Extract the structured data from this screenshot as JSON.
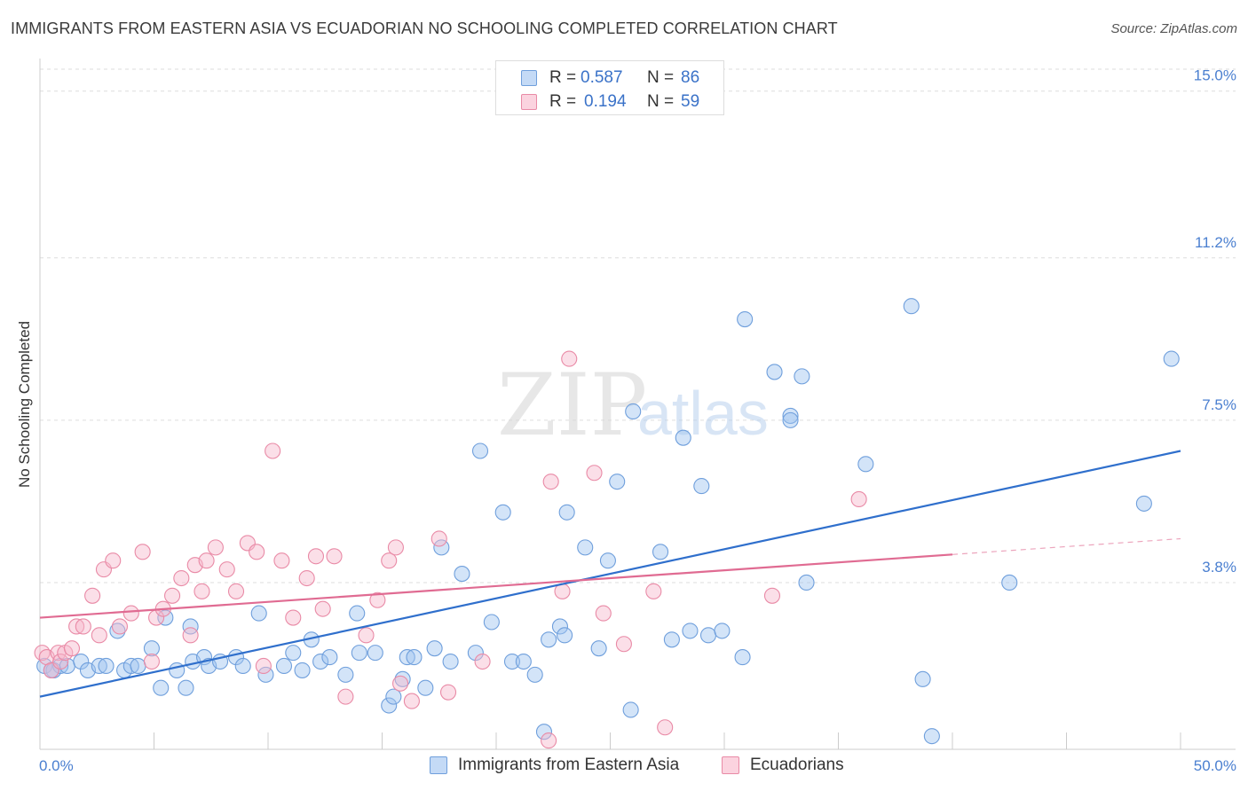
{
  "title": "IMMIGRANTS FROM EASTERN ASIA VS ECUADORIAN NO SCHOOLING COMPLETED CORRELATION CHART",
  "source": "Source: ZipAtlas.com",
  "watermark": {
    "zip": "ZIP",
    "atlas": "atlas"
  },
  "legend_top": {
    "rows": [
      {
        "r_label": "R =",
        "r_value": "0.587",
        "n_label": "N =",
        "n_value": "86",
        "color": "#9ec3f0"
      },
      {
        "r_label": "R =",
        "r_value": "0.194",
        "n_label": "N =",
        "n_value": "59",
        "color": "#f6b8cb"
      }
    ]
  },
  "legend_bottom": [
    {
      "label": "Immigrants from Eastern Asia",
      "color": "#9ec3f0"
    },
    {
      "label": "Ecuadorians",
      "color": "#f6b8cb"
    }
  ],
  "chart_data": {
    "type": "scatter",
    "title": "IMMIGRANTS FROM EASTERN ASIA VS ECUADORIAN NO SCHOOLING COMPLETED CORRELATION CHART",
    "xlabel": "",
    "ylabel": "No Schooling Completed",
    "xlim": [
      0,
      50
    ],
    "ylim": [
      0,
      15.5
    ],
    "x_tick_labels": [
      "0.0%",
      "50.0%"
    ],
    "y_ticks": [
      {
        "value": 3.8,
        "label": "3.8%"
      },
      {
        "value": 7.5,
        "label": "7.5%"
      },
      {
        "value": 11.2,
        "label": "11.2%"
      },
      {
        "value": 15.0,
        "label": "15.0%"
      }
    ],
    "grid": "horizontal dashed",
    "legend_position": "top-center",
    "series": [
      {
        "name": "Immigrants from Eastern Asia",
        "color": "#9ec3f0",
        "stroke": "#6f9fdc",
        "trend_color": "#2f6fcc",
        "trend": {
          "x0": 0,
          "y0": 1.2,
          "x1": 50,
          "y1": 6.8,
          "solid_to": 50
        },
        "points": [
          [
            0.2,
            1.9
          ],
          [
            0.6,
            1.8
          ],
          [
            0.9,
            1.9
          ],
          [
            1.2,
            1.9
          ],
          [
            1.8,
            2.0
          ],
          [
            2.1,
            1.8
          ],
          [
            2.6,
            1.9
          ],
          [
            2.9,
            1.9
          ],
          [
            3.4,
            2.7
          ],
          [
            3.7,
            1.8
          ],
          [
            4.0,
            1.9
          ],
          [
            4.3,
            1.9
          ],
          [
            4.9,
            2.3
          ],
          [
            5.3,
            1.4
          ],
          [
            5.5,
            3.0
          ],
          [
            6.0,
            1.8
          ],
          [
            6.4,
            1.4
          ],
          [
            6.6,
            2.8
          ],
          [
            6.7,
            2.0
          ],
          [
            7.2,
            2.1
          ],
          [
            7.4,
            1.9
          ],
          [
            7.9,
            2.0
          ],
          [
            8.6,
            2.1
          ],
          [
            8.9,
            1.9
          ],
          [
            9.9,
            1.7
          ],
          [
            9.6,
            3.1
          ],
          [
            10.7,
            1.9
          ],
          [
            11.1,
            2.2
          ],
          [
            11.5,
            1.8
          ],
          [
            11.9,
            2.5
          ],
          [
            12.3,
            2.0
          ],
          [
            12.7,
            2.1
          ],
          [
            13.4,
            1.7
          ],
          [
            14.0,
            2.2
          ],
          [
            13.9,
            3.1
          ],
          [
            14.7,
            2.2
          ],
          [
            15.3,
            1.0
          ],
          [
            15.5,
            1.2
          ],
          [
            15.9,
            1.6
          ],
          [
            16.1,
            2.1
          ],
          [
            16.4,
            2.1
          ],
          [
            17.3,
            2.3
          ],
          [
            16.9,
            1.4
          ],
          [
            17.6,
            4.6
          ],
          [
            18.0,
            2.0
          ],
          [
            18.5,
            4.0
          ],
          [
            19.1,
            2.2
          ],
          [
            19.3,
            6.8
          ],
          [
            19.8,
            2.9
          ],
          [
            20.3,
            5.4
          ],
          [
            20.7,
            2.0
          ],
          [
            21.2,
            2.0
          ],
          [
            21.7,
            1.7
          ],
          [
            22.1,
            0.4
          ],
          [
            22.3,
            2.5
          ],
          [
            22.8,
            2.8
          ],
          [
            23.0,
            2.6
          ],
          [
            23.1,
            5.4
          ],
          [
            23.9,
            4.6
          ],
          [
            24.5,
            2.3
          ],
          [
            24.9,
            4.3
          ],
          [
            25.3,
            6.1
          ],
          [
            25.9,
            0.9
          ],
          [
            26.0,
            7.7
          ],
          [
            27.2,
            4.5
          ],
          [
            27.7,
            2.5
          ],
          [
            28.2,
            7.1
          ],
          [
            28.5,
            2.7
          ],
          [
            29.0,
            6.0
          ],
          [
            29.3,
            2.6
          ],
          [
            29.9,
            2.7
          ],
          [
            30.8,
            2.1
          ],
          [
            30.9,
            9.8
          ],
          [
            32.2,
            8.6
          ],
          [
            32.9,
            7.6
          ],
          [
            32.9,
            7.5
          ],
          [
            33.4,
            8.5
          ],
          [
            33.6,
            3.8
          ],
          [
            36.2,
            6.5
          ],
          [
            38.7,
            1.6
          ],
          [
            38.2,
            10.1
          ],
          [
            39.1,
            0.3
          ],
          [
            42.5,
            3.8
          ],
          [
            48.4,
            5.6
          ],
          [
            49.6,
            8.9
          ],
          [
            0.5,
            1.8
          ]
        ]
      },
      {
        "name": "Ecuadorians",
        "color": "#f6b8cb",
        "stroke": "#e98aa6",
        "trend_color": "#e06b92",
        "trend": {
          "x0": 0,
          "y0": 3.0,
          "x1": 50,
          "y1": 4.8,
          "solid_to": 40
        },
        "points": [
          [
            0.1,
            2.2
          ],
          [
            0.3,
            2.1
          ],
          [
            0.5,
            1.8
          ],
          [
            0.8,
            2.2
          ],
          [
            0.9,
            2.0
          ],
          [
            1.1,
            2.2
          ],
          [
            1.4,
            2.3
          ],
          [
            1.6,
            2.8
          ],
          [
            1.9,
            2.8
          ],
          [
            2.3,
            3.5
          ],
          [
            2.8,
            4.1
          ],
          [
            2.6,
            2.6
          ],
          [
            3.2,
            4.3
          ],
          [
            3.5,
            2.8
          ],
          [
            4.0,
            3.1
          ],
          [
            4.5,
            4.5
          ],
          [
            4.9,
            2.0
          ],
          [
            5.1,
            3.0
          ],
          [
            5.4,
            3.2
          ],
          [
            5.8,
            3.5
          ],
          [
            6.2,
            3.9
          ],
          [
            6.6,
            2.6
          ],
          [
            6.8,
            4.2
          ],
          [
            7.1,
            3.6
          ],
          [
            7.3,
            4.3
          ],
          [
            7.7,
            4.6
          ],
          [
            8.2,
            4.1
          ],
          [
            8.6,
            3.6
          ],
          [
            9.1,
            4.7
          ],
          [
            9.5,
            4.5
          ],
          [
            9.8,
            1.9
          ],
          [
            10.2,
            6.8
          ],
          [
            10.6,
            4.3
          ],
          [
            11.1,
            3.0
          ],
          [
            11.7,
            3.9
          ],
          [
            12.1,
            4.4
          ],
          [
            12.4,
            3.2
          ],
          [
            12.9,
            4.4
          ],
          [
            13.4,
            1.2
          ],
          [
            14.3,
            2.6
          ],
          [
            14.8,
            3.4
          ],
          [
            15.3,
            4.3
          ],
          [
            15.6,
            4.6
          ],
          [
            15.8,
            1.5
          ],
          [
            16.3,
            1.1
          ],
          [
            17.5,
            4.8
          ],
          [
            17.9,
            1.3
          ],
          [
            19.4,
            2.0
          ],
          [
            22.3,
            0.2
          ],
          [
            22.4,
            6.1
          ],
          [
            22.9,
            3.6
          ],
          [
            23.2,
            8.9
          ],
          [
            24.3,
            6.3
          ],
          [
            24.7,
            3.1
          ],
          [
            25.6,
            2.4
          ],
          [
            26.9,
            3.6
          ],
          [
            27.4,
            0.5
          ],
          [
            32.1,
            3.5
          ],
          [
            35.9,
            5.7
          ]
        ]
      }
    ]
  }
}
